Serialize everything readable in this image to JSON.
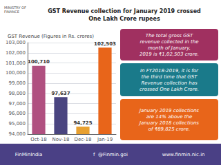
{
  "chart_data": {
    "type": "bar",
    "title": "GST Revenue collection for January 2019 crossed\nOne Lakh Crore rupees",
    "subtitle": "GST Revenue (Figures in Rs. crores)",
    "categories": [
      "Oct-18",
      "Nov-18",
      "Dec-18",
      "Jan-19"
    ],
    "values": [
      100710,
      97637,
      94725,
      102503
    ],
    "value_labels": [
      "100,710",
      "97,637",
      "94,725",
      "102,503"
    ],
    "data_labels": true,
    "colors": [
      "#b05080",
      "#4a4580",
      "#e8a030",
      "#e8651a"
    ],
    "ylim": [
      94000,
      103000
    ],
    "yticks": [
      {
        "value": 94000,
        "label": "94,000"
      },
      {
        "value": 95000,
        "label": "95,000"
      },
      {
        "value": 96000,
        "label": "96,000"
      },
      {
        "value": 97000,
        "label": "97,000"
      },
      {
        "value": 98000,
        "label": "98,000"
      },
      {
        "value": 99000,
        "label": "99,000"
      },
      {
        "value": 100000,
        "label": "100,000"
      },
      {
        "value": 101000,
        "label": "101,000"
      },
      {
        "value": 102000,
        "label": "102,000"
      },
      {
        "value": 103000,
        "label": "103,000"
      }
    ],
    "grid": true,
    "annotations": [
      "MINISTRY OF\nFINANCE",
      "The total gross GST\nrevenue collected in the\nmonth of January,\n2019 is ₹1,02,503 crore.",
      "In FY2018-2019, it is for\nthe third time that GST\nRevenue collection has\ncrossed One Lakh Crore.",
      "January 2019 collections\nare 14% above the\nJanuary 2018 collections\nof ₹89,825 crore.",
      "FinMinIndia",
      "f  @Finmin.goi",
      "www.finmin.nic.in"
    ]
  }
}
